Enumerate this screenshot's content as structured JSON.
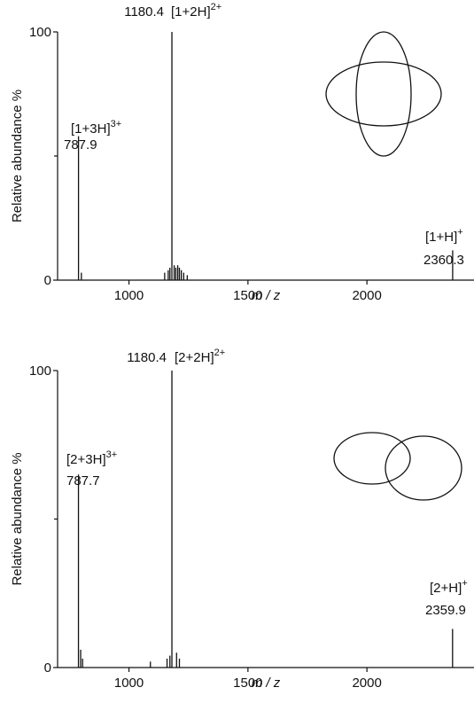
{
  "chart_data": [
    {
      "type": "spectrum",
      "xlabel": "m / z",
      "ylabel": "Relative abundance %",
      "xlim": [
        700,
        2450
      ],
      "ylim": [
        0,
        100
      ],
      "xticks": [
        1000,
        1500,
        2000
      ],
      "yticks": [
        0,
        100
      ],
      "yminor": [
        50
      ],
      "color": "#111111",
      "x": [
        787.9,
        1180.4,
        2360.3,
        800,
        1150,
        1165,
        1172,
        1190,
        1197,
        1205,
        1212,
        1220,
        1230,
        1245
      ],
      "values": [
        58,
        100,
        12,
        3,
        3,
        4,
        5,
        6,
        5,
        6,
        5,
        4,
        3,
        2
      ],
      "peak_labels": [
        {
          "ion": "[1+3H]",
          "charge": "3+"
        },
        {
          "ion": "[1+2H]",
          "charge": "2+"
        },
        {
          "ion": "[1+H]",
          "charge": "+"
        }
      ]
    },
    {
      "type": "spectrum",
      "xlabel": "m / z",
      "ylabel": "Relative abundance %",
      "xlim": [
        700,
        2450
      ],
      "ylim": [
        0,
        100
      ],
      "xticks": [
        1000,
        1500,
        2000
      ],
      "yticks": [
        0,
        100
      ],
      "yminor": [
        50
      ],
      "color": "#111111",
      "x": [
        787.7,
        1180.4,
        2359.9,
        797,
        805,
        1160,
        1172,
        1200,
        1212,
        1090
      ],
      "values": [
        65,
        100,
        13,
        6,
        3,
        3,
        4,
        5,
        3,
        2
      ],
      "peak_labels": [
        {
          "ion": "[2+3H]",
          "charge": "3+"
        },
        {
          "ion": "[2+2H]",
          "charge": "2+"
        },
        {
          "ion": "[2+H]",
          "charge": "+"
        }
      ]
    }
  ]
}
